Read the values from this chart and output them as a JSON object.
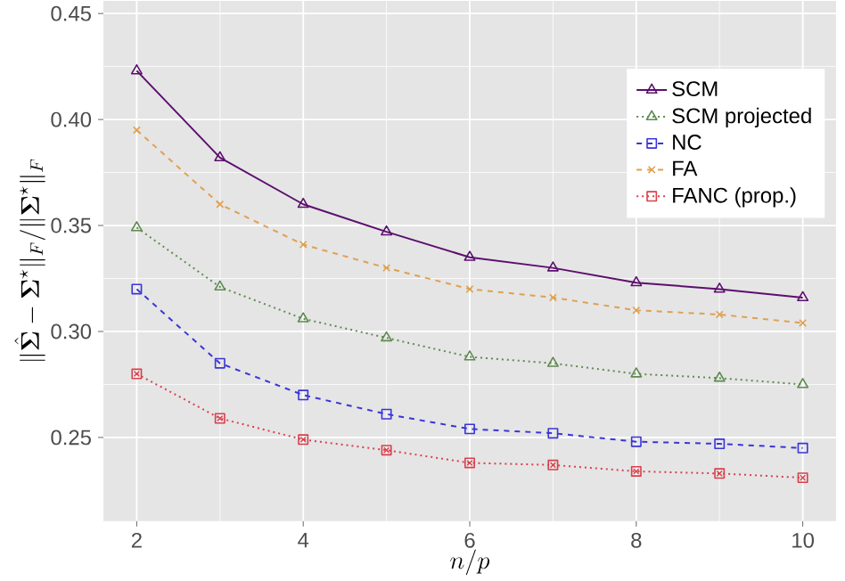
{
  "chart_data": {
    "type": "line",
    "xlabel": "n/p",
    "ylabel": "\\|\\hat{\\boldsymbol{\\Sigma}}-\\boldsymbol{\\Sigma}^{\\star}\\|_F/\\|\\boldsymbol{\\Sigma}^{\\star}\\|_F",
    "x": [
      2,
      3,
      4,
      5,
      6,
      7,
      8,
      9,
      10
    ],
    "xlim": [
      1.6,
      10.4
    ],
    "xticks": [
      2,
      4,
      6,
      8,
      10
    ],
    "ylim": [
      0.2105,
      0.456
    ],
    "yticks": [
      {
        "value": 0.25,
        "label": "0.25"
      },
      {
        "value": 0.3,
        "label": "0.30"
      },
      {
        "value": 0.35,
        "label": "0.35"
      },
      {
        "value": 0.4,
        "label": "0.40"
      },
      {
        "value": 0.45,
        "label": "0.45"
      }
    ],
    "grid": true,
    "legend": "top right",
    "series": [
      {
        "name": "SCM",
        "color": "#5c0f6e",
        "marker": "triangle",
        "line_style": "solid",
        "values": [
          0.423,
          0.382,
          0.36,
          0.347,
          0.335,
          0.33,
          0.323,
          0.32,
          0.316
        ]
      },
      {
        "name": "SCM projected",
        "color": "#5f8a50",
        "marker": "triangle",
        "line_style": "dotted",
        "values": [
          0.349,
          0.321,
          0.306,
          0.297,
          0.288,
          0.285,
          0.28,
          0.278,
          0.275
        ]
      },
      {
        "name": "NC",
        "color": "#3a35d8",
        "marker": "square",
        "line_style": "dashed",
        "values": [
          0.32,
          0.285,
          0.27,
          0.261,
          0.254,
          0.252,
          0.248,
          0.247,
          0.245
        ]
      },
      {
        "name": "FA",
        "color": "#e0a050",
        "marker": "cross",
        "line_style": "dashed",
        "values": [
          0.395,
          0.36,
          0.341,
          0.33,
          0.32,
          0.316,
          0.31,
          0.308,
          0.304
        ]
      },
      {
        "name": "FANC (prop.)",
        "color": "#d8404c",
        "marker": "squarecross",
        "line_style": "dotted",
        "values": [
          0.28,
          0.259,
          0.249,
          0.244,
          0.238,
          0.237,
          0.234,
          0.233,
          0.231
        ]
      }
    ]
  }
}
